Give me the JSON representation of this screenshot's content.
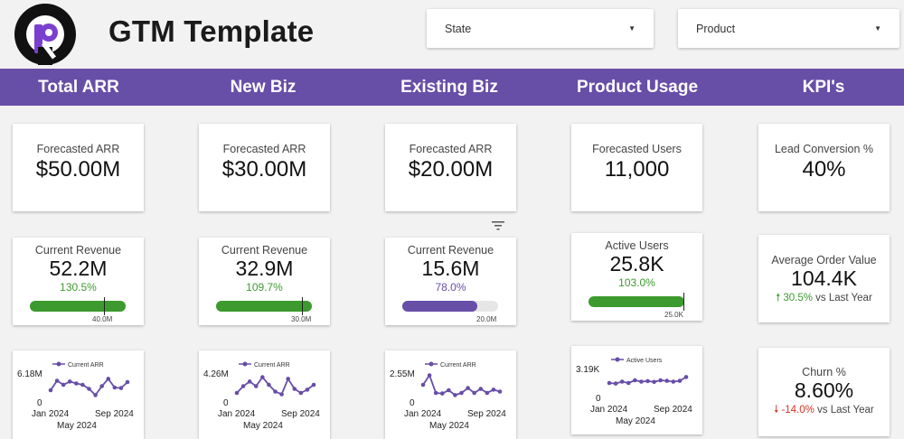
{
  "header": {
    "title": "GTM Template",
    "filters": [
      {
        "label": "State"
      },
      {
        "label": "Product"
      }
    ]
  },
  "nav": {
    "tabs": [
      "Total ARR",
      "New Biz",
      "Existing Biz",
      "Product Usage",
      "KPI's"
    ]
  },
  "colors": {
    "brand_purple": "#674ea7",
    "positive_green": "#3c9a2e",
    "negative_red": "#d93025",
    "icon": "filter-icon"
  },
  "columns": [
    {
      "forecast": {
        "label": "Forecasted ARR",
        "value": "$50.00M"
      },
      "current": {
        "label": "Current Revenue",
        "value": "52.2M",
        "percent": "130.5%",
        "progress": 1.0,
        "target_position": 0.77,
        "target_label": "40.0M",
        "fill_color": "#3c9a2e"
      },
      "trend": {
        "legend": "Current ARR",
        "y_top": "6.18M",
        "y_zero": "0",
        "x_labels": [
          "Jan 2024",
          "Sep 2024"
        ],
        "x_label_2": "May 2024",
        "points": [
          0.4,
          0.75,
          0.6,
          0.72,
          0.65,
          0.6,
          0.45,
          0.22,
          0.55,
          0.82,
          0.5,
          0.48,
          0.7
        ]
      }
    },
    {
      "forecast": {
        "label": "Forecasted ARR",
        "value": "$30.00M"
      },
      "current": {
        "label": "Current Revenue",
        "value": "32.9M",
        "percent": "109.7%",
        "progress": 1.0,
        "target_position": 0.9,
        "target_label": "30.0M",
        "fill_color": "#3c9a2e"
      },
      "trend": {
        "legend": "Current ARR",
        "y_top": "4.26M",
        "y_zero": "0",
        "x_labels": [
          "Jan 2024",
          "Sep 2024"
        ],
        "x_label_2": "May 2024",
        "points": [
          0.3,
          0.55,
          0.72,
          0.55,
          0.88,
          0.6,
          0.35,
          0.25,
          0.82,
          0.45,
          0.3,
          0.42,
          0.6
        ]
      }
    },
    {
      "forecast": {
        "label": "Forecasted ARR",
        "value": "$20.00M"
      },
      "current": {
        "label": "Current Revenue",
        "value": "15.6M",
        "percent": "78.0%",
        "progress": 0.78,
        "target_position": 1.0,
        "target_label": "20.0M",
        "fill_color": "#674ea7"
      },
      "trend": {
        "legend": "Current ARR",
        "y_top": "2.55M",
        "y_zero": "0",
        "x_labels": [
          "Jan 2024",
          "Sep 2024"
        ],
        "x_label_2": "May 2024",
        "points": [
          0.6,
          0.95,
          0.3,
          0.28,
          0.4,
          0.22,
          0.3,
          0.48,
          0.3,
          0.45,
          0.3,
          0.42,
          0.35
        ]
      }
    },
    {
      "forecast": {
        "label": "Forecasted Users",
        "value": "11,000"
      },
      "current": {
        "label": "Active Users",
        "value": "25.8K",
        "percent": "103.0%",
        "progress": 1.0,
        "target_position": 1.0,
        "target_label": "25.0K",
        "fill_color": "#3c9a2e"
      },
      "trend": {
        "legend": "Active Users",
        "y_top": "3.19K",
        "y_zero": "0",
        "x_labels": [
          "Jan 2024",
          "Sep 2024"
        ],
        "x_label_2": "May 2024",
        "points": [
          0.5,
          0.48,
          0.55,
          0.5,
          0.6,
          0.55,
          0.57,
          0.54,
          0.6,
          0.58,
          0.55,
          0.58,
          0.72
        ]
      }
    },
    {
      "kpi1": {
        "label": "Lead Conversion %",
        "value": "40%"
      },
      "kpi2": {
        "label": "Average Order Value",
        "value": "104.4K",
        "delta": "30.5%",
        "delta_suffix": " vs Last Year",
        "direction": "up"
      },
      "kpi3": {
        "label": "Churn %",
        "value": "8.60%",
        "delta": "-14.0%",
        "delta_suffix": " vs Last Year",
        "direction": "down"
      }
    }
  ]
}
